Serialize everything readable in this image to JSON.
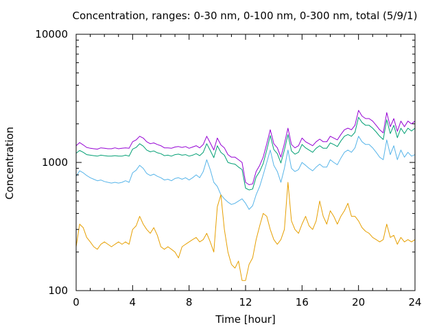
{
  "chart_data": {
    "type": "line",
    "title": "Concentration, ranges: 0-30 nm, 0-100 nm, 0-300 nm, total (5/9/1)",
    "xlabel": "Time [hour]",
    "ylabel": "Concentration",
    "xlim": [
      0,
      24
    ],
    "ylim": [
      100,
      10000
    ],
    "yscale": "log",
    "grid": false,
    "legend": "none",
    "x_ticks": [
      0,
      4,
      8,
      12,
      16,
      20,
      24
    ],
    "x_tick_labels": [
      "0",
      "4",
      "8",
      "12",
      "16",
      "20",
      "24"
    ],
    "y_ticks": [
      100,
      1000,
      10000
    ],
    "y_tick_labels": [
      "100",
      "1000",
      "10000"
    ],
    "x": [
      0,
      0.25,
      0.5,
      0.75,
      1,
      1.25,
      1.5,
      1.75,
      2,
      2.25,
      2.5,
      2.75,
      3,
      3.25,
      3.5,
      3.75,
      4,
      4.25,
      4.5,
      4.75,
      5,
      5.25,
      5.5,
      5.75,
      6,
      6.25,
      6.5,
      6.75,
      7,
      7.25,
      7.5,
      7.75,
      8,
      8.25,
      8.5,
      8.75,
      9,
      9.25,
      9.5,
      9.75,
      10,
      10.25,
      10.5,
      10.75,
      11,
      11.25,
      11.5,
      11.75,
      12,
      12.25,
      12.5,
      12.75,
      13,
      13.25,
      13.5,
      13.75,
      14,
      14.25,
      14.5,
      14.75,
      15,
      15.25,
      15.5,
      15.75,
      16,
      16.25,
      16.5,
      16.75,
      17,
      17.25,
      17.5,
      17.75,
      18,
      18.25,
      18.5,
      18.75,
      19,
      19.25,
      19.5,
      19.75,
      20,
      20.25,
      20.5,
      20.75,
      21,
      21.25,
      21.5,
      21.75,
      22,
      22.25,
      22.5,
      22.75,
      23,
      23.25,
      23.5,
      23.75,
      24
    ],
    "series": [
      {
        "color": "#9400d3",
        "values": [
          1350,
          1430,
          1370,
          1310,
          1290,
          1280,
          1270,
          1300,
          1290,
          1280,
          1280,
          1300,
          1280,
          1290,
          1300,
          1290,
          1450,
          1500,
          1600,
          1550,
          1450,
          1400,
          1420,
          1380,
          1350,
          1300,
          1300,
          1290,
          1320,
          1330,
          1310,
          1330,
          1290,
          1320,
          1350,
          1300,
          1380,
          1600,
          1420,
          1250,
          1550,
          1370,
          1300,
          1150,
          1100,
          1100,
          1050,
          1000,
          700,
          670,
          680,
          850,
          950,
          1100,
          1400,
          1800,
          1400,
          1300,
          1100,
          1400,
          1850,
          1380,
          1300,
          1350,
          1550,
          1450,
          1400,
          1350,
          1450,
          1520,
          1450,
          1450,
          1600,
          1550,
          1500,
          1650,
          1800,
          1850,
          1800,
          1950,
          2550,
          2300,
          2200,
          2200,
          2100,
          1950,
          1800,
          1700,
          2450,
          1900,
          2200,
          1750,
          2100,
          1900,
          2100,
          2000,
          2100
        ]
      },
      {
        "color": "#009e73",
        "values": [
          1180,
          1240,
          1200,
          1150,
          1140,
          1130,
          1120,
          1140,
          1130,
          1120,
          1120,
          1130,
          1120,
          1120,
          1140,
          1120,
          1270,
          1310,
          1400,
          1340,
          1250,
          1210,
          1230,
          1190,
          1170,
          1130,
          1140,
          1120,
          1150,
          1160,
          1140,
          1150,
          1120,
          1140,
          1170,
          1130,
          1200,
          1400,
          1240,
          1090,
          1350,
          1200,
          1140,
          1000,
          980,
          970,
          920,
          880,
          630,
          610,
          620,
          770,
          850,
          980,
          1250,
          1620,
          1260,
          1170,
          990,
          1250,
          1650,
          1230,
          1160,
          1200,
          1380,
          1300,
          1250,
          1200,
          1290,
          1350,
          1290,
          1290,
          1420,
          1380,
          1330,
          1470,
          1600,
          1650,
          1600,
          1720,
          2250,
          2050,
          1950,
          1950,
          1850,
          1730,
          1600,
          1510,
          2150,
          1680,
          1950,
          1560,
          1850,
          1680,
          1850,
          1760,
          1850
        ]
      },
      {
        "color": "#56b4e9",
        "values": [
          780,
          860,
          830,
          790,
          760,
          740,
          720,
          730,
          710,
          700,
          690,
          700,
          690,
          700,
          720,
          700,
          830,
          870,
          950,
          900,
          820,
          790,
          810,
          780,
          760,
          730,
          740,
          720,
          750,
          760,
          740,
          760,
          730,
          760,
          800,
          760,
          850,
          1050,
          880,
          700,
          650,
          560,
          520,
          490,
          470,
          480,
          500,
          520,
          480,
          430,
          460,
          560,
          650,
          800,
          1000,
          1250,
          950,
          850,
          700,
          900,
          1250,
          900,
          850,
          880,
          1000,
          950,
          900,
          860,
          920,
          970,
          920,
          920,
          1050,
          1000,
          960,
          1080,
          1200,
          1250,
          1200,
          1300,
          1600,
          1450,
          1380,
          1380,
          1300,
          1200,
          1100,
          1050,
          1500,
          1150,
          1350,
          1050,
          1250,
          1100,
          1200,
          1120,
          1150
        ]
      },
      {
        "color": "#e69f00",
        "values": [
          220,
          330,
          310,
          260,
          240,
          220,
          210,
          230,
          240,
          230,
          220,
          230,
          240,
          230,
          240,
          230,
          300,
          320,
          380,
          330,
          300,
          280,
          310,
          270,
          220,
          210,
          220,
          210,
          200,
          180,
          220,
          230,
          240,
          250,
          260,
          240,
          250,
          280,
          240,
          200,
          450,
          560,
          300,
          200,
          160,
          150,
          170,
          120,
          120,
          160,
          180,
          250,
          320,
          400,
          380,
          300,
          250,
          230,
          250,
          300,
          700,
          350,
          300,
          280,
          330,
          380,
          320,
          300,
          350,
          500,
          380,
          330,
          420,
          380,
          330,
          380,
          420,
          480,
          380,
          380,
          350,
          310,
          290,
          280,
          260,
          250,
          240,
          250,
          330,
          260,
          270,
          230,
          260,
          240,
          250,
          240,
          250
        ]
      }
    ]
  }
}
